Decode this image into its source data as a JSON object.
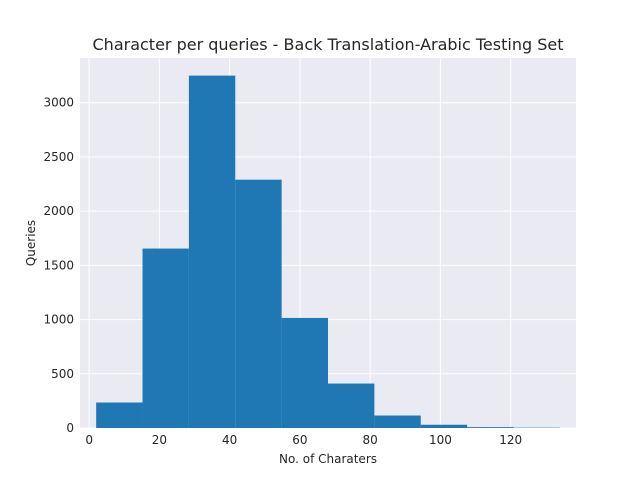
{
  "chart_data": {
    "type": "bar",
    "subtype": "histogram",
    "title": "Character per queries - Back Translation-Arabic Testing Set",
    "xlabel": "No. of Charaters",
    "ylabel": "Queries",
    "bin_edges": [
      2,
      15.2,
      28.4,
      41.6,
      54.8,
      68,
      81.2,
      94.4,
      107.6,
      120.8,
      134
    ],
    "values": [
      235,
      1655,
      3250,
      2290,
      1015,
      410,
      115,
      30,
      8,
      3
    ],
    "xlim": [
      -2.6,
      138.6
    ],
    "ylim": [
      0,
      3412.5
    ],
    "xticks": [
      0,
      20,
      40,
      60,
      80,
      100,
      120
    ],
    "yticks": [
      0,
      500,
      1000,
      1500,
      2000,
      2500,
      3000
    ],
    "grid": true,
    "colors": {
      "bar": "#1f77b4",
      "background": "#eaeaf2",
      "grid": "#ffffff",
      "text": "#262626"
    }
  }
}
